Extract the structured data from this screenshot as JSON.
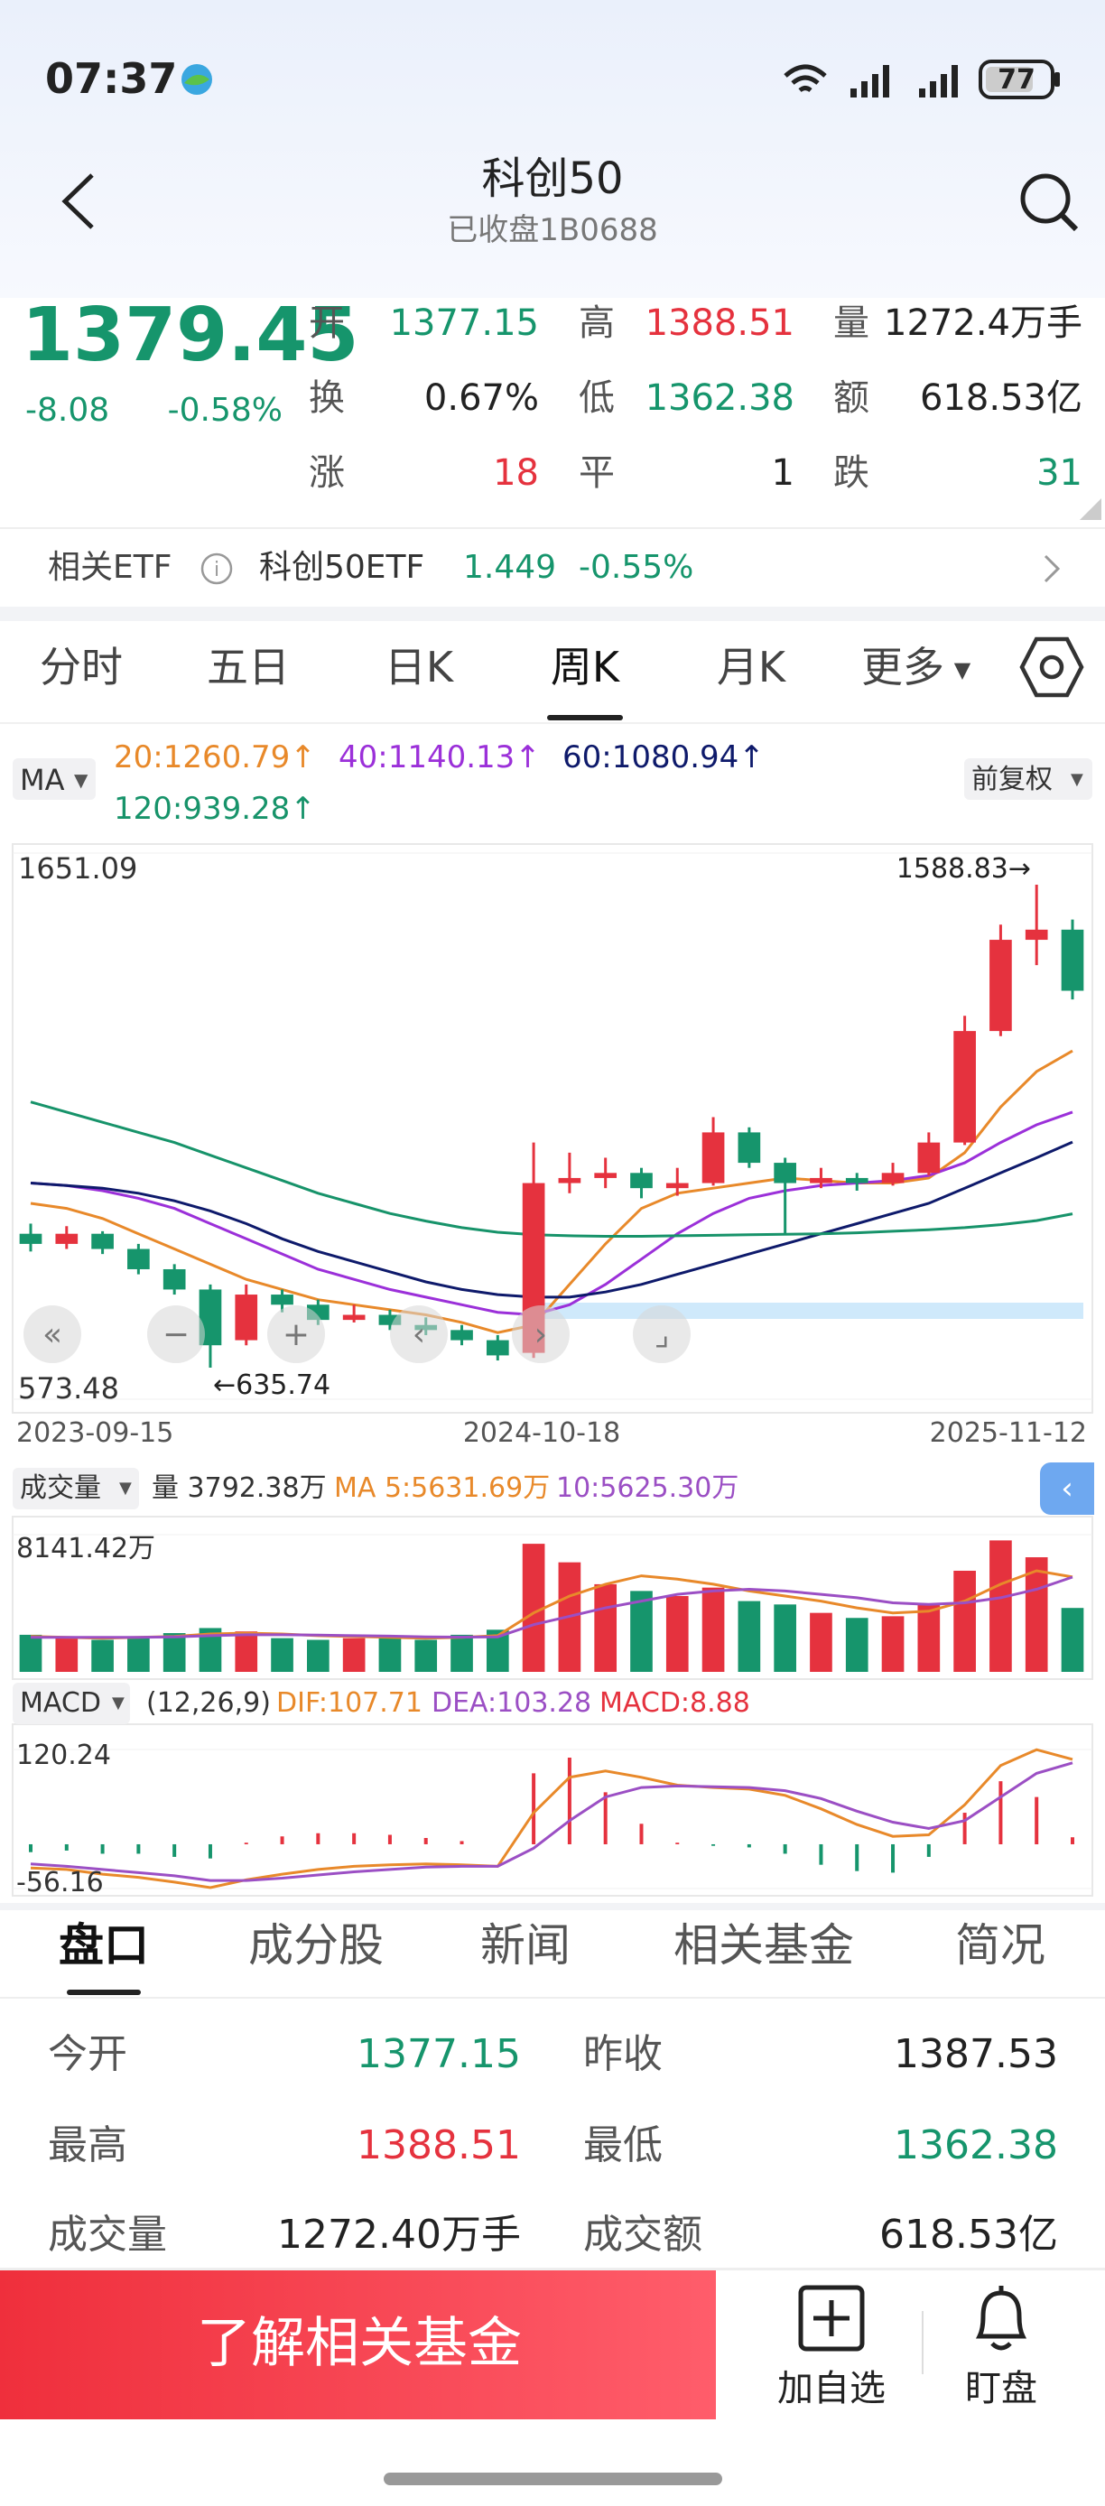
{
  "status_bar": {
    "time": "07:37",
    "battery": "77"
  },
  "header": {
    "title": "科创50",
    "subtitle": "已收盘1B0688"
  },
  "quote": {
    "price": "1379.45",
    "change": "-8.08",
    "change_pct": "-0.58%",
    "fields": [
      {
        "label": "开",
        "value": "1377.15"
      },
      {
        "label": "高",
        "value": "1388.51"
      },
      {
        "label": "量",
        "value": "1272.4万手"
      },
      {
        "label": "换",
        "value": "0.67%"
      },
      {
        "label": "低",
        "value": "1362.38"
      },
      {
        "label": "额",
        "value": "618.53亿"
      },
      {
        "label": "涨",
        "value": "18"
      },
      {
        "label": "平",
        "value": "1"
      },
      {
        "label": "跌",
        "value": "31"
      }
    ]
  },
  "etf": {
    "label": "相关ETF",
    "name": "科创50ETF",
    "price": "1.449",
    "change_pct": "-0.55%"
  },
  "chart_tabs": [
    "分时",
    "五日",
    "日K",
    "周K",
    "月K",
    "更多"
  ],
  "ma_legend": {
    "selector": "MA",
    "items": [
      "20:1260.79↑",
      "40:1140.13↑",
      "60:1080.94↑",
      "120:939.28↑"
    ],
    "adjust": "前复权"
  },
  "kline": {
    "type": "candlestick",
    "ylim": [
      573.48,
      1651.09
    ],
    "yticks": [
      1651.09,
      573.48
    ],
    "x_labels": [
      "2023-09-15",
      "2024-10-18",
      "2025-11-12"
    ],
    "annotations": [
      "1588.83→",
      "←635.74"
    ],
    "up_color": "#e5323e",
    "down_color": "#16956c",
    "candles": [
      [
        900,
        880,
        920,
        865
      ],
      [
        880,
        900,
        915,
        870
      ],
      [
        900,
        870,
        905,
        860
      ],
      [
        870,
        830,
        880,
        820
      ],
      [
        830,
        790,
        840,
        780
      ],
      [
        790,
        680,
        800,
        635.74
      ],
      [
        690,
        780,
        800,
        680
      ],
      [
        780,
        760,
        790,
        745
      ],
      [
        760,
        730,
        770,
        720
      ],
      [
        730,
        740,
        760,
        725
      ],
      [
        740,
        720,
        750,
        710
      ],
      [
        720,
        710,
        735,
        700
      ],
      [
        710,
        690,
        720,
        680
      ],
      [
        690,
        660,
        700,
        650
      ],
      [
        665,
        1000,
        1080,
        655
      ],
      [
        1000,
        1010,
        1060,
        980
      ],
      [
        1010,
        1020,
        1050,
        990
      ],
      [
        1020,
        990,
        1030,
        970
      ],
      [
        990,
        1000,
        1030,
        975
      ],
      [
        1000,
        1100,
        1130,
        995
      ],
      [
        1100,
        1040,
        1110,
        1030
      ],
      [
        1040,
        1000,
        1050,
        900
      ],
      [
        1000,
        1010,
        1030,
        990
      ],
      [
        1010,
        1000,
        1020,
        985
      ],
      [
        1000,
        1020,
        1040,
        995
      ],
      [
        1020,
        1080,
        1100,
        1015
      ],
      [
        1080,
        1300,
        1330,
        1075
      ],
      [
        1300,
        1480,
        1510,
        1290
      ],
      [
        1480,
        1500,
        1588.83,
        1430
      ],
      [
        1500,
        1379.45,
        1520,
        1362.38
      ]
    ],
    "ma": [
      {
        "color": "#e8892a",
        "values": [
          960,
          950,
          930,
          900,
          870,
          840,
          810,
          790,
          770,
          760,
          750,
          740,
          725,
          705,
          720,
          800,
          880,
          950,
          980,
          990,
          1000,
          1010,
          1005,
          1000,
          1000,
          1010,
          1060,
          1150,
          1220,
          1260.79
        ]
      },
      {
        "color": "#9b30d9",
        "values": [
          1000,
          995,
          985,
          970,
          950,
          920,
          890,
          860,
          830,
          810,
          790,
          775,
          760,
          745,
          740,
          760,
          800,
          850,
          900,
          940,
          970,
          985,
          995,
          1000,
          1005,
          1015,
          1040,
          1080,
          1115,
          1140.13
        ]
      },
      {
        "color": "#0e1a6b",
        "values": [
          1000,
          995,
          990,
          980,
          965,
          945,
          920,
          890,
          865,
          845,
          825,
          805,
          790,
          780,
          775,
          775,
          785,
          800,
          820,
          840,
          860,
          880,
          900,
          920,
          940,
          960,
          990,
          1020,
          1050,
          1080.94
        ]
      },
      {
        "color": "#17936a",
        "values": [
          1160,
          1140,
          1120,
          1100,
          1080,
          1055,
          1030,
          1005,
          980,
          960,
          940,
          925,
          912,
          903,
          898,
          896,
          895,
          895,
          896,
          897,
          898,
          899,
          900,
          902,
          905,
          908,
          912,
          918,
          926,
          939.28
        ]
      }
    ]
  },
  "volume": {
    "type": "bar",
    "selector": "成交量",
    "header": [
      "量 3792.38万",
      "MA 5:5631.69万",
      "10:5625.30万"
    ],
    "ylim": [
      0,
      8141.42
    ],
    "yticks": [
      {
        "value": 8141.42,
        "label": "8141.42万"
      }
    ],
    "values": [
      2200,
      2000,
      1900,
      2100,
      2300,
      2600,
      2400,
      2000,
      1900,
      2000,
      2100,
      1900,
      2200,
      2500,
      7600,
      6500,
      5200,
      4800,
      4500,
      5000,
      4200,
      4000,
      3500,
      3200,
      3300,
      4000,
      6000,
      7800,
      6800,
      3792.38
    ],
    "ma": [
      {
        "color": "#e8892a",
        "values": [
          2100,
          2050,
          2000,
          2050,
          2100,
          2250,
          2300,
          2250,
          2150,
          2100,
          2050,
          2000,
          2050,
          2150,
          3500,
          4500,
          5200,
          5700,
          5500,
          5200,
          4800,
          4500,
          4200,
          3800,
          3500,
          3600,
          4200,
          5200,
          6000,
          5631.69
        ]
      },
      {
        "color": "#9b4fc4",
        "values": [
          2050,
          2050,
          2050,
          2050,
          2080,
          2150,
          2200,
          2200,
          2180,
          2150,
          2120,
          2080,
          2060,
          2080,
          2800,
          3300,
          3800,
          4200,
          4600,
          4800,
          4900,
          4800,
          4600,
          4400,
          4100,
          4000,
          4100,
          4400,
          4900,
          5625.3
        ]
      }
    ]
  },
  "macd": {
    "type": "bar",
    "selector": "MACD",
    "header": [
      "(12,26,9)",
      "DIF:107.71",
      "DEA:103.28",
      "MACD:8.88"
    ],
    "ylim": [
      -56.16,
      120.24
    ],
    "yticks": [
      120.24,
      -56.16
    ],
    "values": [
      -10,
      -8,
      -12,
      -12,
      -16,
      -18,
      2,
      10,
      14,
      14,
      12,
      8,
      4,
      0,
      90,
      110,
      66,
      26,
      2,
      -2,
      -4,
      -12,
      -26,
      -34,
      -36,
      -16,
      40,
      80,
      60,
      8.88
    ],
    "lines": [
      {
        "color": "#e8892a",
        "values": [
          -30,
          -32,
          -38,
          -42,
          -48,
          -55,
          -45,
          -38,
          -32,
          -28,
          -26,
          -25,
          -26,
          -28,
          40,
          85,
          93,
          85,
          75,
          72,
          70,
          62,
          45,
          25,
          10,
          12,
          50,
          100,
          120,
          107.71
        ]
      },
      {
        "color": "#9b4fc4",
        "values": [
          -25,
          -28,
          -32,
          -36,
          -40,
          -46,
          -46,
          -43,
          -39,
          -35,
          -32,
          -29,
          -28,
          -28,
          -5,
          30,
          60,
          72,
          74,
          73,
          72,
          68,
          58,
          42,
          28,
          20,
          30,
          60,
          90,
          103.28
        ]
      }
    ]
  },
  "bottom_tabs": [
    "盘口",
    "成分股",
    "新闻",
    "相关基金",
    "简况"
  ],
  "details": [
    [
      "今开",
      "1377.15",
      "昨收",
      "1387.53"
    ],
    [
      "最高",
      "1388.51",
      "最低",
      "1362.38"
    ],
    [
      "成交量",
      "1272.40万手",
      "成交额",
      "618.53亿"
    ]
  ],
  "actions": {
    "button": "了解相关基金",
    "add": "加自选",
    "watch": "盯盘"
  }
}
